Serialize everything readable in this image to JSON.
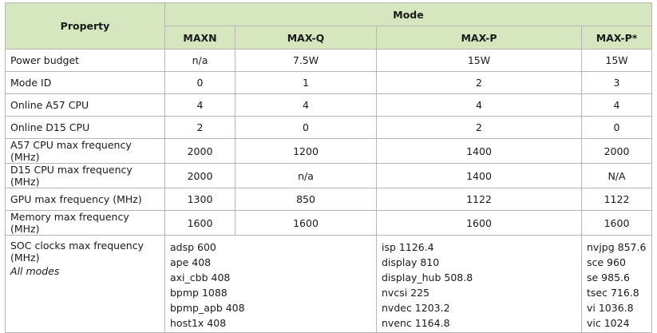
{
  "header": {
    "property": "Property",
    "mode": "Mode",
    "modes": [
      "MAXN",
      "MAX-Q",
      "MAX-P",
      "MAX-P*"
    ]
  },
  "rows": [
    {
      "label": "Power budget",
      "values": [
        "n/a",
        "7.5W",
        "15W",
        "15W"
      ]
    },
    {
      "label": "Mode ID",
      "values": [
        "0",
        "1",
        "2",
        "3"
      ]
    },
    {
      "label": "Online A57 CPU",
      "values": [
        "4",
        "4",
        "4",
        "4"
      ]
    },
    {
      "label": "Online D15 CPU",
      "values": [
        "2",
        "0",
        "2",
        "0"
      ]
    },
    {
      "label": "A57 CPU max frequency (MHz)",
      "values": [
        "2000",
        "1200",
        "1400",
        "2000"
      ]
    },
    {
      "label": "D15 CPU max frequency (MHz)",
      "values": [
        "2000",
        "n/a",
        "1400",
        "N/A"
      ]
    },
    {
      "label": "GPU max frequency (MHz)",
      "values": [
        "1300",
        "850",
        "1122",
        "1122"
      ]
    },
    {
      "label": "Memory max frequency (MHz)",
      "values": [
        "1600",
        "1600",
        "1600",
        "1600"
      ]
    }
  ],
  "soc": {
    "label": "SOC clocks max frequency (MHz)",
    "note": "All modes",
    "col1": [
      "adsp 600",
      "ape 408",
      "axi_cbb 408",
      "bpmp 1088",
      "bpmp_apb 408",
      "host1x 408"
    ],
    "col2": [
      "isp 1126.4",
      "display 810",
      "display_hub 508.8",
      "nvcsi 225",
      "nvdec 1203.2",
      "nvenc 1164.8"
    ],
    "col3": [
      "nvjpg 857.6",
      "sce 960",
      "se 985.6",
      "tsec 716.8",
      "vi 1036.8",
      "vic 1024"
    ]
  }
}
